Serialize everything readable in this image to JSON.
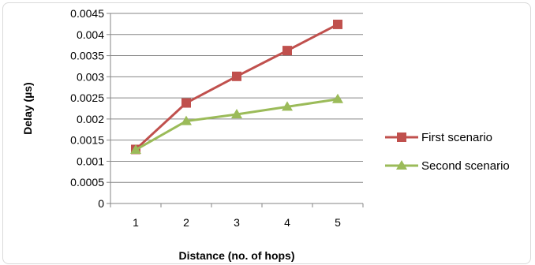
{
  "chart_data": {
    "type": "line",
    "xlabel": "Distance (no. of hops)",
    "ylabel": "Delay (µs)",
    "categories": [
      "1",
      "2",
      "3",
      "4",
      "5"
    ],
    "ylim": [
      0,
      0.0045
    ],
    "yticks": [
      "0",
      "0.0005",
      "0.001",
      "0.0015",
      "0.002",
      "0.0025",
      "0.003",
      "0.0035",
      "0.004",
      "0.0045"
    ],
    "grid": "horizontal",
    "legend_position": "right",
    "series": [
      {
        "name": "First scenario",
        "color": "#c0504d",
        "marker": "square",
        "values": [
          0.00128,
          0.00238,
          0.00301,
          0.00362,
          0.00424
        ]
      },
      {
        "name": "Second scenario",
        "color": "#9bbb59",
        "marker": "triangle",
        "values": [
          0.00127,
          0.00195,
          0.00211,
          0.00229,
          0.00247
        ]
      }
    ]
  }
}
